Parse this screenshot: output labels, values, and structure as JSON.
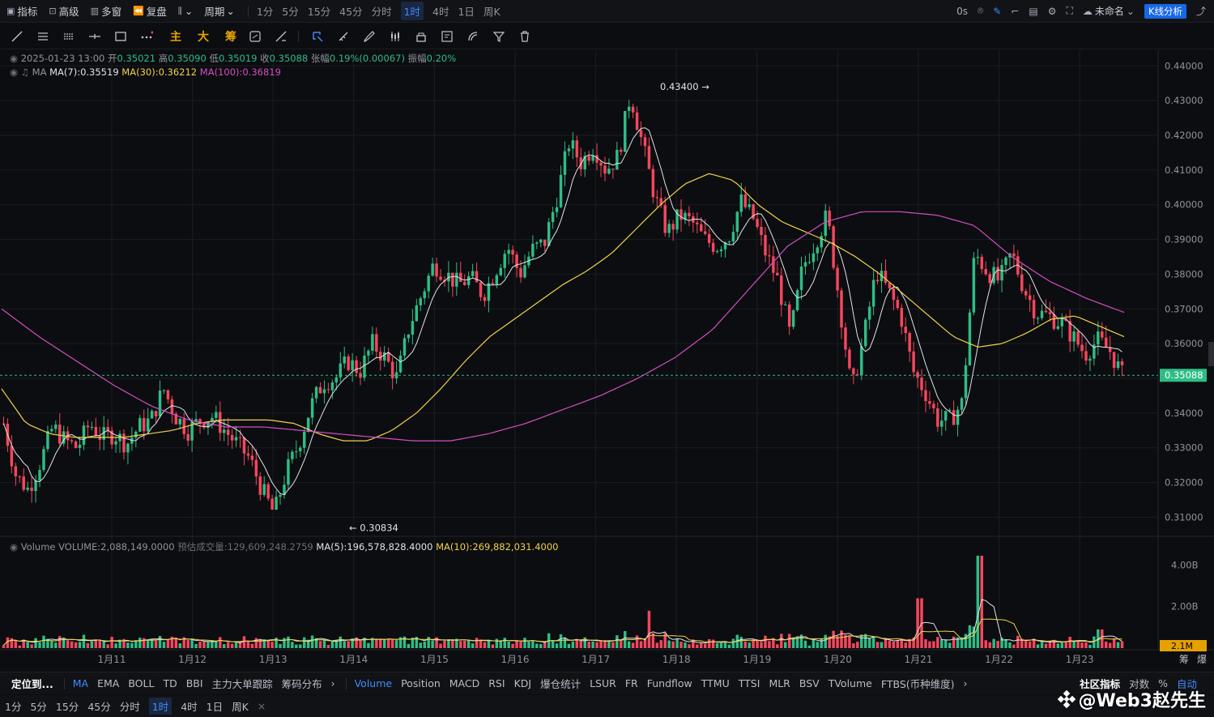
{
  "toolbar": {
    "indicators": "指标",
    "advanced": "高级",
    "multiwindow": "多窗",
    "replay": "复盘",
    "period": "周期",
    "periods": [
      "1分",
      "5分",
      "15分",
      "45分",
      "分时",
      "1时",
      "4时",
      "1日",
      "周K"
    ],
    "active_period": "1时",
    "right_time": "0s",
    "layout_name": "未命名",
    "kline_btn": "K线分析"
  },
  "draw_text": [
    "主",
    "大",
    "筹"
  ],
  "info": {
    "date": "2025-01-23 13:00",
    "open_label": "开",
    "open": "0.35021",
    "high_label": "高",
    "high": "0.35090",
    "low_label": "低",
    "low": "0.35019",
    "close_label": "收",
    "close": "0.35088",
    "change_label": "张幅",
    "change": "0.19%(0.00067)",
    "amp_label": "振幅",
    "amp": "0.20%",
    "ma_label": "MA",
    "ma7": "MA(7):0.35519",
    "ma30": "MA(30):0.36212",
    "ma100": "MA(100):0.36819",
    "vol_label": "Volume",
    "vol": "VOLUME:2,088,149.0000",
    "est_label": "预估成交量:129,609,248.2759",
    "vma5": "MA(5):196,578,828.4000",
    "vma10": "MA(10):269,882,031.4000"
  },
  "colors": {
    "up": "#2ebd85",
    "down": "#f6465d",
    "ma7": "#e0e3e8",
    "ma30": "#f0d24b",
    "ma100": "#d24fc4",
    "bg": "#0c0d10",
    "grid": "#1b1d21"
  },
  "chart_data": {
    "type": "candlestick",
    "x_ticks": [
      "1月11",
      "1月12",
      "1月13",
      "1月14",
      "1月15",
      "1月16",
      "1月17",
      "1月18",
      "1月19",
      "1月20",
      "1月21",
      "1月22",
      "1月23"
    ],
    "y_ticks": [
      "0.44000",
      "0.43000",
      "0.42000",
      "0.41000",
      "0.40000",
      "0.39000",
      "0.38000",
      "0.37000",
      "0.36000",
      "0.35000",
      "0.34000",
      "0.33000",
      "0.32000",
      "0.31000"
    ],
    "ylim": [
      0.3045,
      0.4445
    ],
    "last_price": "0.35088",
    "high_annotation": "0.43400",
    "low_annotation": "0.30834",
    "close_path": [
      0.337,
      0.322,
      0.318,
      0.326,
      0.336,
      0.332,
      0.33,
      0.337,
      0.333,
      0.334,
      0.331,
      0.336,
      0.338,
      0.347,
      0.339,
      0.335,
      0.338,
      0.339,
      0.335,
      0.331,
      0.327,
      0.318,
      0.311,
      0.323,
      0.331,
      0.342,
      0.349,
      0.35,
      0.355,
      0.352,
      0.36,
      0.356,
      0.35,
      0.365,
      0.374,
      0.383,
      0.38,
      0.377,
      0.379,
      0.374,
      0.381,
      0.388,
      0.38,
      0.387,
      0.389,
      0.402,
      0.418,
      0.412,
      0.417,
      0.41,
      0.414,
      0.432,
      0.417,
      0.402,
      0.392,
      0.397,
      0.395,
      0.39,
      0.388,
      0.391,
      0.401,
      0.396,
      0.386,
      0.378,
      0.362,
      0.382,
      0.389,
      0.397,
      0.372,
      0.346,
      0.362,
      0.381,
      0.375,
      0.368,
      0.352,
      0.346,
      0.338,
      0.338,
      0.343,
      0.386,
      0.381,
      0.378,
      0.386,
      0.376,
      0.369,
      0.368,
      0.366,
      0.362,
      0.357,
      0.361,
      0.358,
      0.351
    ],
    "ma30_path": [
      0.347,
      0.337,
      0.334,
      0.333,
      0.333,
      0.333,
      0.334,
      0.335,
      0.337,
      0.338,
      0.338,
      0.338,
      0.337,
      0.334,
      0.332,
      0.332,
      0.335,
      0.34,
      0.347,
      0.355,
      0.362,
      0.367,
      0.372,
      0.377,
      0.381,
      0.386,
      0.393,
      0.4,
      0.406,
      0.409,
      0.407,
      0.4,
      0.395,
      0.392,
      0.389,
      0.385,
      0.38,
      0.374,
      0.368,
      0.362,
      0.359,
      0.36,
      0.363,
      0.367,
      0.368,
      0.365,
      0.362
    ],
    "ma100_path": [
      0.37,
      0.362,
      0.355,
      0.348,
      0.342,
      0.338,
      0.336,
      0.336,
      0.335,
      0.334,
      0.333,
      0.332,
      0.332,
      0.334,
      0.337,
      0.341,
      0.345,
      0.35,
      0.356,
      0.364,
      0.376,
      0.388,
      0.395,
      0.398,
      0.398,
      0.397,
      0.394,
      0.385,
      0.378,
      0.373,
      0.369
    ],
    "volume_ticks": [
      "4.00B",
      "2.00B"
    ],
    "volume_last": "2.1M"
  },
  "bottom": {
    "locate": "定位到...",
    "main_inds": [
      "MA",
      "EMA",
      "BOLL",
      "TD",
      "BBI",
      "主力大单跟踪",
      "筹码分布"
    ],
    "sub_inds": [
      "Volume",
      "Position",
      "MACD",
      "RSI",
      "KDJ",
      "爆仓统计",
      "LSUR",
      "FR",
      "Fundflow",
      "TTMU",
      "TTSI",
      "MLR",
      "BSV",
      "TVolume",
      "FTBS(币种维度)"
    ],
    "community": "社区指标",
    "log": "对数",
    "pct": "%",
    "auto": "自动",
    "periods2": [
      "1分",
      "5分",
      "15分",
      "45分",
      "分时",
      "1时",
      "4时",
      "1日",
      "周K"
    ],
    "close_x": "×",
    "watermark": "@Web3赵先生"
  },
  "side_labels": {
    "chips": "筹",
    "liq": "爆"
  }
}
